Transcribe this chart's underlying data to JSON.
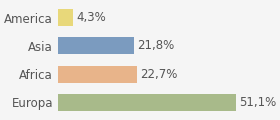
{
  "categories": [
    "America",
    "Asia",
    "Africa",
    "Europa"
  ],
  "values": [
    4.3,
    21.8,
    22.7,
    51.1
  ],
  "labels": [
    "4,3%",
    "21,8%",
    "22,7%",
    "51,1%"
  ],
  "bar_colors": [
    "#e8d87a",
    "#7b9bbf",
    "#e8b48a",
    "#a8ba8a"
  ],
  "background_color": "#f5f5f5",
  "xlim": [
    0,
    62
  ],
  "label_fontsize": 8.5,
  "tick_fontsize": 8.5
}
